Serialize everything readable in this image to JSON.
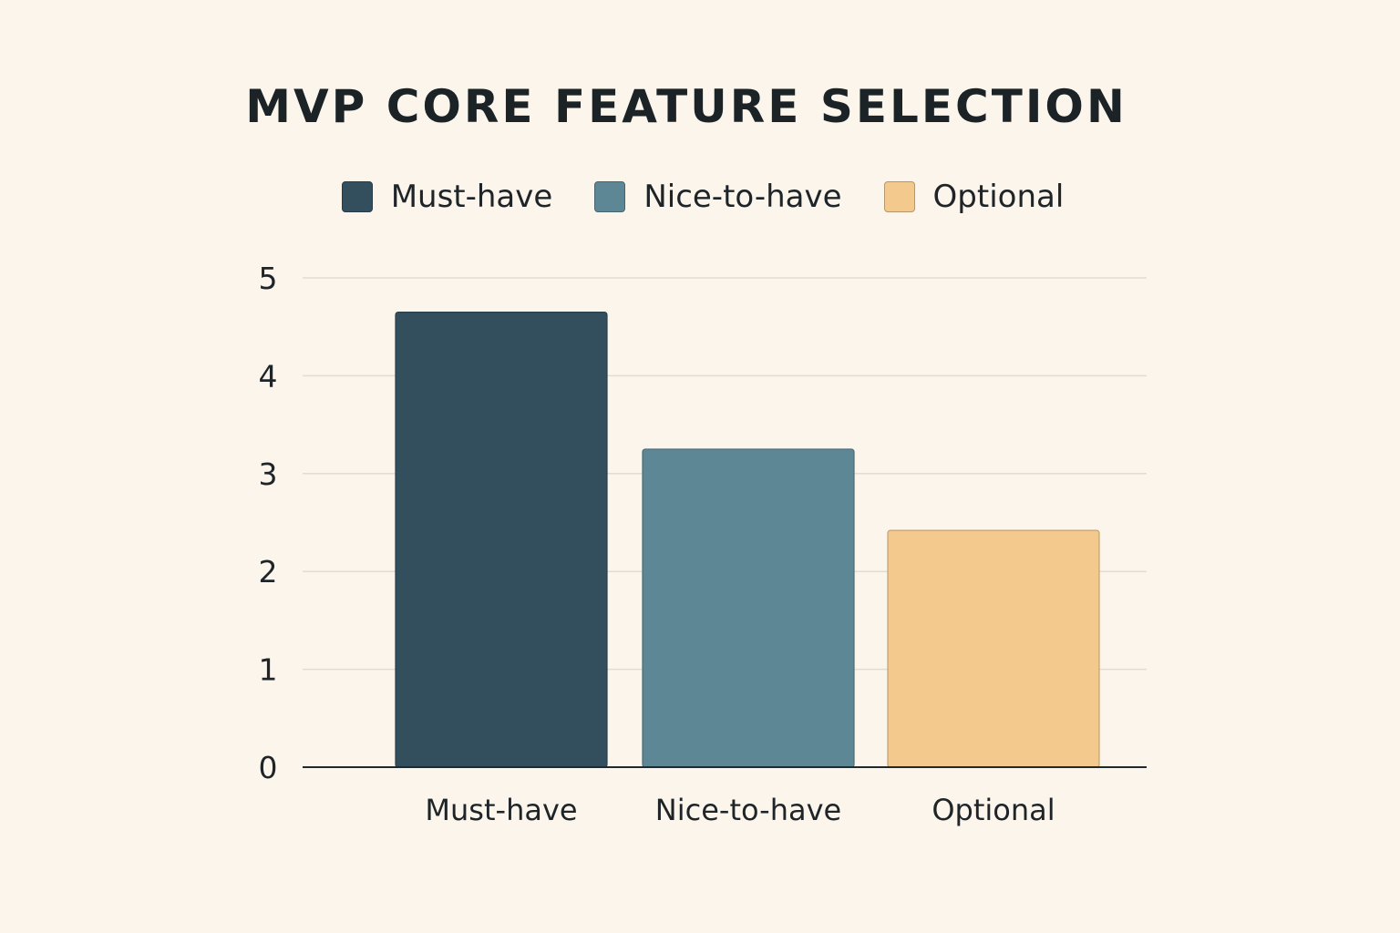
{
  "chart_data": {
    "type": "bar",
    "title": "MVP CORE FEATURE SELECTION",
    "categories": [
      "Must-have",
      "Nice-to-have",
      "Optional"
    ],
    "values": [
      4.65,
      3.25,
      2.42
    ],
    "colors": [
      "#334f5e",
      "#5e8795",
      "#f4c98d"
    ],
    "legend": [
      {
        "label": "Must-have",
        "color": "#334f5e"
      },
      {
        "label": "Nice-to-have",
        "color": "#5e8795"
      },
      {
        "label": "Optional",
        "color": "#f4c98d"
      }
    ],
    "xlabel": "",
    "ylabel": "",
    "ylim": [
      0,
      5
    ],
    "yticks": [
      "0",
      "1",
      "2",
      "3",
      "4",
      "5"
    ],
    "grid": true,
    "legend_position": "top-center"
  }
}
